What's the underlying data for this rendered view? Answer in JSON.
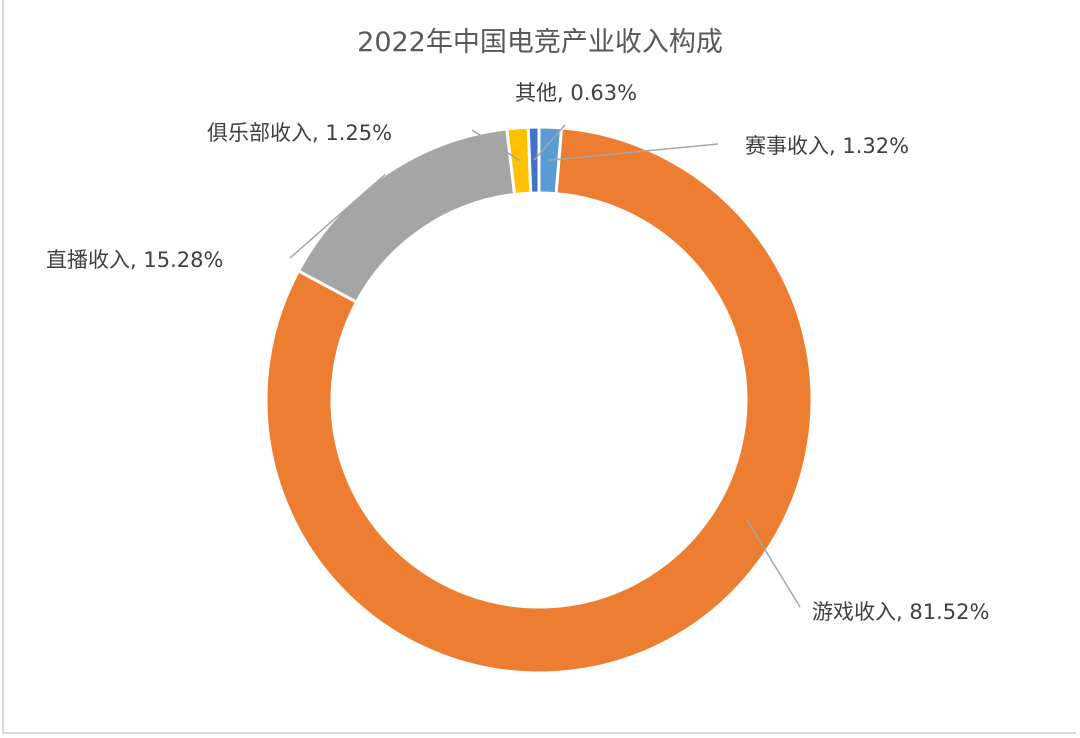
{
  "chart_data": {
    "type": "pie",
    "variant": "doughnut",
    "title": "2022年中国电竞产业收入构成",
    "categories": [
      "赛事收入",
      "游戏收入",
      "直播收入",
      "俱乐部收入",
      "其他"
    ],
    "values": [
      1.32,
      81.52,
      15.28,
      1.25,
      0.63
    ],
    "unit": "%",
    "colors": [
      "#5b9bd5",
      "#ed7d31",
      "#a5a5a5",
      "#ffc000",
      "#4472c4"
    ],
    "start_angle_deg": 0,
    "direction": "clockwise",
    "legend": "none",
    "data_labels": [
      "赛事收入, 1.32%",
      "游戏收入, 81.52%",
      "直播收入, 15.28%",
      "俱乐部收入, 1.25%",
      "其他, 0.63%"
    ]
  }
}
